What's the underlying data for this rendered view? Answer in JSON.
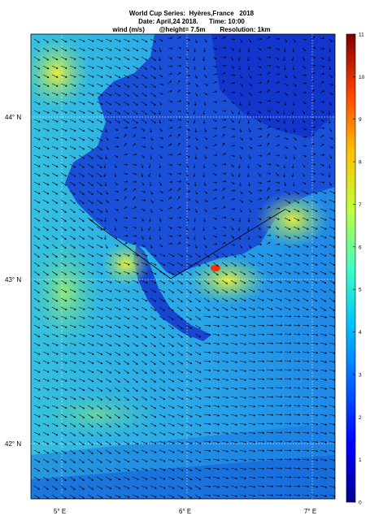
{
  "title": {
    "line1": "World Cup Series:  Hyères,France   2018",
    "line2": "Date: April,24 2018.      Time: 10:00",
    "line3": "wind (m/s)        @height= 7.5m        Resolution: 1km"
  },
  "axes": {
    "lat_labels": [
      "44° N",
      "43° N",
      "42° N"
    ],
    "lon_labels": [
      "5° E",
      "6° E",
      "7° E"
    ]
  },
  "colorbar": {
    "min": 0,
    "max": 11,
    "ticks": [
      "0",
      "1",
      "2",
      "3",
      "4",
      "5",
      "6",
      "7",
      "8",
      "9",
      "10",
      "11"
    ],
    "colors": [
      "#00008f",
      "#0000ff",
      "#0080ff",
      "#00ffff",
      "#80ff80",
      "#ffff00",
      "#ff8000",
      "#ff0000",
      "#800000"
    ]
  },
  "map": {
    "sea_color": "#1f9be8",
    "land_color": "#1a4fd8",
    "wind_direction": "northwest-to-southeast"
  }
}
